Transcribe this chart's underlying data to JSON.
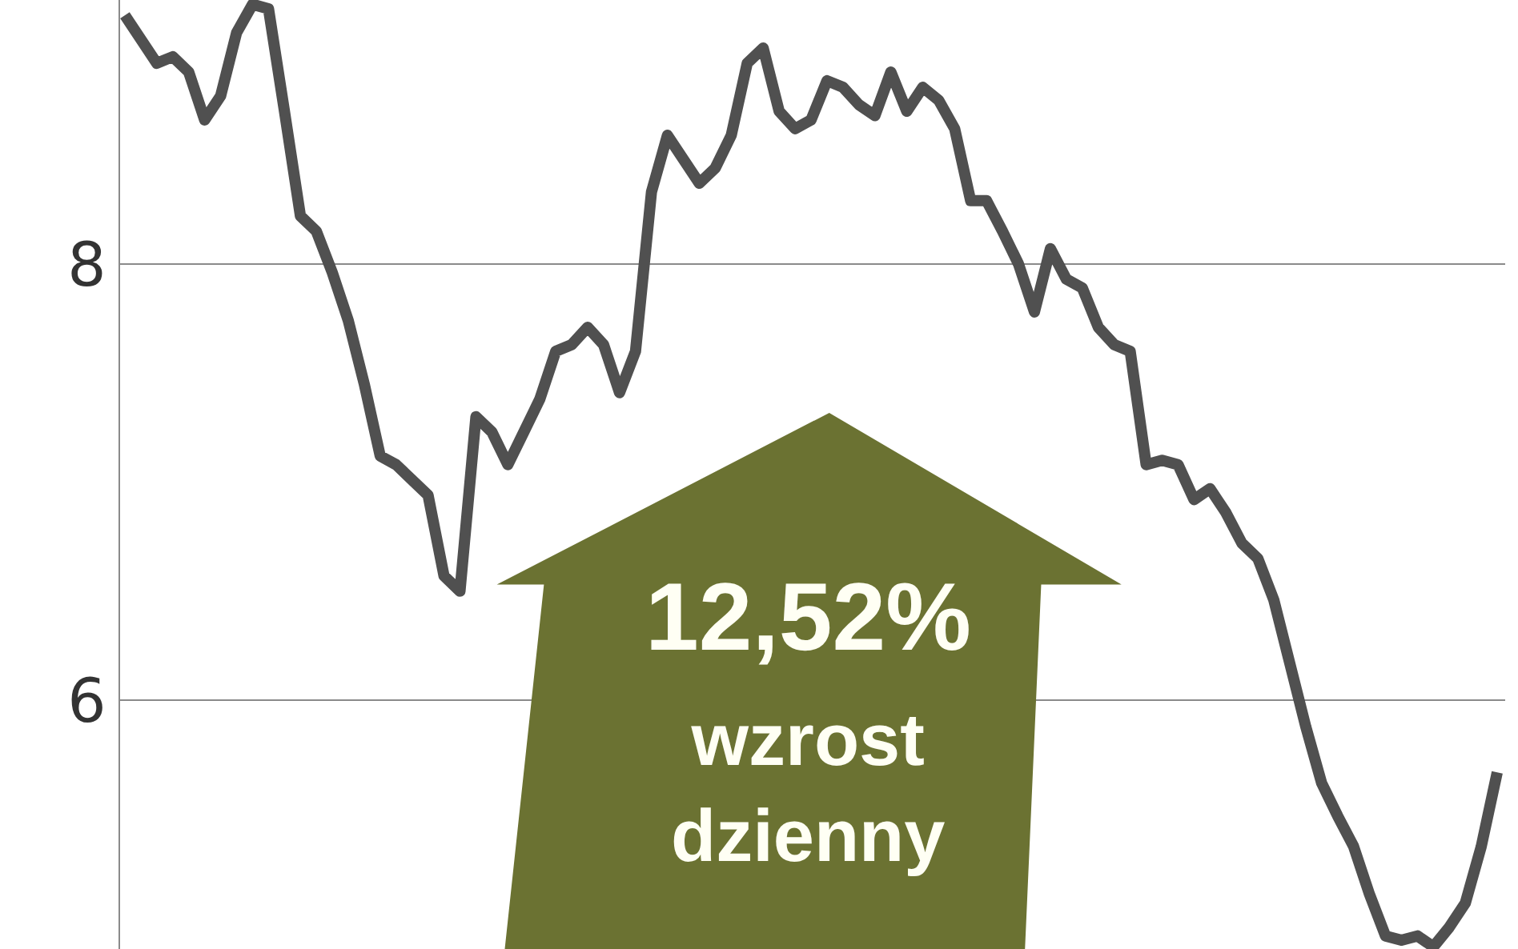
{
  "chart_data": {
    "type": "line",
    "categories": [
      null,
      null,
      null,
      null,
      null,
      null,
      null,
      null,
      null,
      null,
      null,
      null,
      null,
      null,
      null,
      null,
      null,
      null,
      null,
      null,
      null,
      null,
      null,
      null,
      null,
      null,
      null,
      null,
      null,
      null,
      null,
      null,
      null,
      null,
      null,
      null,
      null,
      null,
      null,
      null,
      null,
      null,
      null,
      null,
      null,
      null,
      null,
      null,
      null,
      null,
      null,
      null,
      null,
      null,
      null,
      null,
      null,
      null,
      null,
      null,
      null,
      null,
      null,
      null,
      null,
      null,
      null,
      null,
      null,
      null,
      null,
      null,
      null,
      null,
      null,
      null,
      null,
      null,
      null,
      null,
      null,
      null,
      null,
      null,
      null,
      null,
      null
    ],
    "series": [
      {
        "color": "#505050",
        "values": [
          9.14,
          9.03,
          8.92,
          8.95,
          8.88,
          8.66,
          8.77,
          9.06,
          9.19,
          9.17,
          8.7,
          8.22,
          8.15,
          7.96,
          7.74,
          7.45,
          7.12,
          7.08,
          7.01,
          6.94,
          6.57,
          6.5,
          7.3,
          7.23,
          7.08,
          7.23,
          7.38,
          7.6,
          7.63,
          7.71,
          7.63,
          7.41,
          7.6,
          8.33,
          8.59,
          8.48,
          8.37,
          8.44,
          8.59,
          8.92,
          8.99,
          8.7,
          8.62,
          8.66,
          8.84,
          8.81,
          8.73,
          8.68,
          8.88,
          8.7,
          8.81,
          8.75,
          8.62,
          8.29,
          8.29,
          8.15,
          8.0,
          7.78,
          8.07,
          7.93,
          7.89,
          7.71,
          7.63,
          7.6,
          7.08,
          7.1,
          7.08,
          6.92,
          6.97,
          6.86,
          6.72,
          6.65,
          6.46,
          6.17,
          5.88,
          5.62,
          5.47,
          5.33,
          5.11,
          4.92,
          4.9,
          4.92,
          4.87,
          4.96,
          5.07,
          5.33,
          5.67
        ]
      }
    ],
    "ylim": [
      4.86,
      9.21
    ],
    "yticks": [
      6,
      8
    ],
    "grid": "y",
    "marker": "none",
    "line_style": "solid",
    "annotations": [
      "12,52%",
      "wzrost\ndzienny"
    ]
  }
}
